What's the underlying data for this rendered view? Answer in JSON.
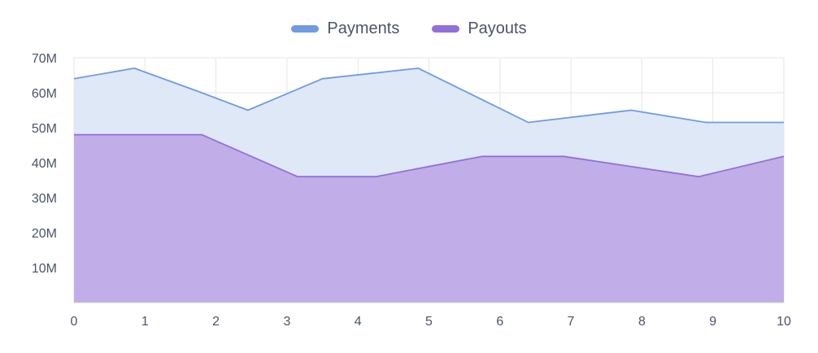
{
  "chart_data": {
    "type": "area",
    "title": "",
    "xlabel": "",
    "ylabel": "",
    "xlim": [
      0,
      10
    ],
    "ylim": [
      0,
      70000000
    ],
    "grid": true,
    "legend_position": "top-center",
    "x_ticks": [
      "0",
      "1",
      "2",
      "3",
      "4",
      "5",
      "6",
      "7",
      "8",
      "9",
      "10"
    ],
    "y_ticks": [
      {
        "value": 10000000,
        "label": "10M"
      },
      {
        "value": 20000000,
        "label": "20M"
      },
      {
        "value": 30000000,
        "label": "30M"
      },
      {
        "value": 40000000,
        "label": "40M"
      },
      {
        "value": 50000000,
        "label": "50M"
      },
      {
        "value": 60000000,
        "label": "60M"
      },
      {
        "value": 70000000,
        "label": "70M"
      }
    ],
    "series": [
      {
        "name": "Payments",
        "color": "#6f9be0",
        "fill": "#dfe8f7",
        "x": [
          0,
          0.85,
          1.8,
          2.45,
          3.5,
          4.85,
          6.4,
          7.85,
          8.9,
          10
        ],
        "values": [
          64000000,
          67000000,
          60000000,
          55000000,
          64000000,
          67000000,
          51500000,
          55000000,
          51500000,
          51500000
        ]
      },
      {
        "name": "Payouts",
        "color": "#9270d9",
        "fill": "#c1ade8",
        "x": [
          0,
          1.8,
          3.15,
          4.25,
          5.75,
          6.9,
          8.8,
          10
        ],
        "values": [
          48000000,
          48000000,
          36000000,
          36000000,
          41800000,
          41800000,
          36000000,
          41800000
        ]
      }
    ]
  }
}
